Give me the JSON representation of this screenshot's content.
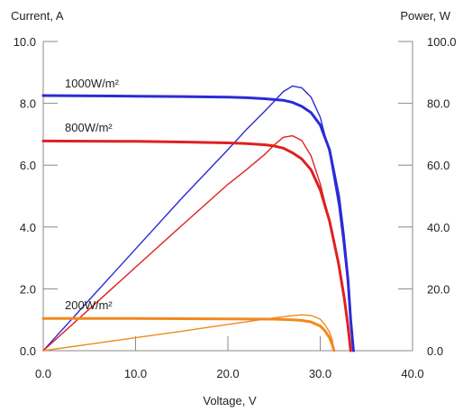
{
  "chart_data": {
    "type": "line",
    "xlabel": "Voltage, V",
    "ylabel": "Current, A",
    "y2label": "Power, W",
    "xlim": [
      0,
      40
    ],
    "ylim": [
      0,
      10
    ],
    "y2lim": [
      0,
      100
    ],
    "grid": false,
    "x_ticks": [
      "0.0",
      "10.0",
      "20.0",
      "30.0",
      "40.0"
    ],
    "y_ticks": [
      "0.0",
      "2.0",
      "4.0",
      "6.0",
      "8.0",
      "10.0"
    ],
    "y2_ticks": [
      "0.0",
      "20.0",
      "40.0",
      "60.0",
      "80.0",
      "100.0"
    ],
    "annotations": [
      {
        "text": "1000W/m²",
        "color": "#2b2bd6"
      },
      {
        "text": "800W/m²",
        "color": "#e02020"
      },
      {
        "text": "200W/m²",
        "color": "#f08a1e"
      }
    ],
    "series": [
      {
        "kind": "current",
        "axis": "left",
        "irradiance": "1000W/m²",
        "color": "#2b2bd6",
        "width": 3,
        "x": [
          0,
          10,
          15,
          20,
          22,
          24,
          26,
          27,
          28,
          29,
          30,
          31,
          32,
          32.5,
          33,
          33.3,
          33.6
        ],
        "y": [
          8.25,
          8.23,
          8.22,
          8.2,
          8.18,
          8.15,
          8.1,
          8.03,
          7.9,
          7.7,
          7.3,
          6.5,
          5.0,
          3.8,
          2.3,
          1.0,
          0
        ]
      },
      {
        "kind": "power",
        "axis": "right",
        "irradiance": "1000W/m²",
        "color": "#2b2bd6",
        "width": 1.4,
        "x": [
          0,
          5,
          10,
          15,
          20,
          22,
          24,
          25,
          26,
          27,
          28,
          29,
          30,
          31,
          32,
          32.5,
          33,
          33.3,
          33.6
        ],
        "y": [
          0,
          16.5,
          32.9,
          49.3,
          65.0,
          71.5,
          77.5,
          80.6,
          83.8,
          85.6,
          85.0,
          82.0,
          75.5,
          64.0,
          47.0,
          35.0,
          21.0,
          9.0,
          0
        ]
      },
      {
        "kind": "current",
        "axis": "left",
        "irradiance": "800W/m²",
        "color": "#e02020",
        "width": 3,
        "x": [
          0,
          10,
          15,
          20,
          22,
          24,
          25,
          26,
          27,
          28,
          29,
          30,
          31,
          32,
          32.6,
          33,
          33.3
        ],
        "y": [
          6.78,
          6.77,
          6.75,
          6.72,
          6.7,
          6.66,
          6.62,
          6.55,
          6.4,
          6.2,
          5.85,
          5.2,
          4.2,
          2.8,
          1.7,
          0.8,
          0
        ]
      },
      {
        "kind": "power",
        "axis": "right",
        "irradiance": "800W/m²",
        "color": "#e02020",
        "width": 1.4,
        "x": [
          0,
          5,
          10,
          15,
          20,
          22,
          24,
          25,
          26,
          27,
          28,
          29,
          30,
          31,
          32,
          32.6,
          33,
          33.3
        ],
        "y": [
          0,
          13.5,
          27.0,
          40.5,
          53.8,
          58.5,
          63.5,
          66.5,
          69.0,
          69.5,
          68.0,
          63.0,
          54.0,
          42.0,
          27.0,
          16.0,
          8.0,
          0
        ]
      },
      {
        "kind": "current",
        "axis": "left",
        "irradiance": "200W/m²",
        "color": "#f08a1e",
        "width": 3,
        "x": [
          0,
          10,
          20,
          25,
          27,
          28,
          29,
          30,
          30.5,
          31,
          31.3,
          31.5
        ],
        "y": [
          1.04,
          1.04,
          1.03,
          1.02,
          1.0,
          0.98,
          0.93,
          0.8,
          0.65,
          0.42,
          0.2,
          0
        ]
      },
      {
        "kind": "power",
        "axis": "right",
        "irradiance": "200W/m²",
        "color": "#f08a1e",
        "width": 1.4,
        "x": [
          0,
          5,
          10,
          15,
          20,
          25,
          27,
          28,
          29,
          30,
          30.5,
          31,
          31.3,
          31.5
        ],
        "y": [
          0,
          2.1,
          4.2,
          6.3,
          8.5,
          10.6,
          11.3,
          11.6,
          11.4,
          10.2,
          8.5,
          6.0,
          3.5,
          0
        ]
      }
    ]
  }
}
